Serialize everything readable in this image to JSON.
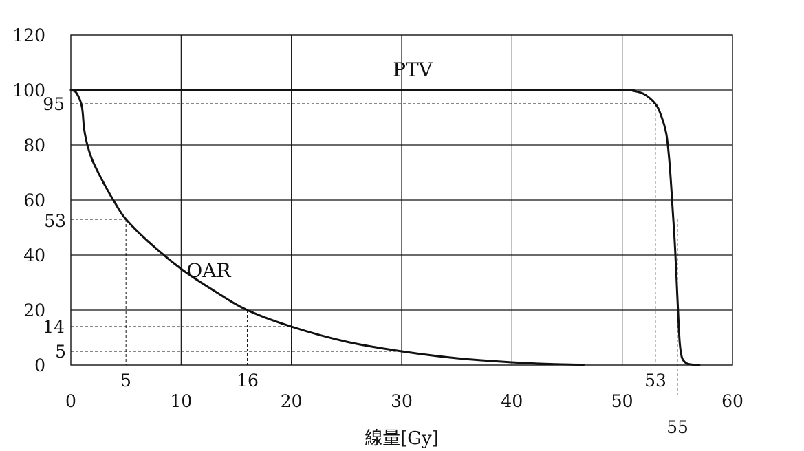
{
  "chart_data": {
    "type": "line",
    "title": "",
    "xlabel": "線量[Gy]",
    "ylabel": "",
    "xlim": [
      0,
      60
    ],
    "ylim": [
      0,
      120
    ],
    "grid": true,
    "legend": "none",
    "x_ticks": [
      "0",
      "10",
      "20",
      "30",
      "40",
      "50",
      "60"
    ],
    "y_ticks": [
      "0",
      "20",
      "40",
      "60",
      "80",
      "100",
      "120"
    ],
    "series": [
      {
        "name": "PTV",
        "x": [
          0,
          10,
          20,
          30,
          40,
          50,
          51,
          52,
          53,
          53.5,
          54,
          54.3,
          54.6,
          54.8,
          55,
          55.2,
          55.4,
          55.7,
          56,
          56.5,
          57
        ],
        "y": [
          100,
          100,
          100,
          100,
          100,
          100,
          99.7,
          98.5,
          95,
          91,
          84,
          73,
          55,
          42,
          25,
          9,
          3,
          1,
          0.4,
          0.1,
          0
        ]
      },
      {
        "name": "OAR",
        "x": [
          0,
          0.5,
          1,
          1.2,
          1.5,
          2,
          3,
          4,
          5,
          7,
          10,
          13,
          16,
          20,
          25,
          30,
          35,
          40,
          44,
          46.5
        ],
        "y": [
          100,
          99,
          94,
          86,
          80,
          74,
          66,
          59,
          53,
          45,
          35,
          27,
          20,
          14,
          8.5,
          5,
          2.5,
          1,
          0.3,
          0.1
        ]
      }
    ],
    "reference_lines": [
      {
        "label": "95",
        "x": 53,
        "y": 95
      },
      {
        "label": "53",
        "x": 5,
        "y": 53
      },
      {
        "label": "14",
        "x": 20,
        "y": 14
      },
      {
        "label": "5",
        "x": 30,
        "y": 5
      }
    ],
    "x_markers": [
      {
        "label": "5",
        "x": 5,
        "y": 53
      },
      {
        "label": "16",
        "x": 16,
        "y": 20
      },
      {
        "label": "20",
        "x": 20,
        "y": 14
      },
      {
        "label": "53",
        "x": 53,
        "y": 95
      },
      {
        "label": "55",
        "x": 55,
        "y": 53
      }
    ],
    "annotations": [
      {
        "text": "PTV",
        "x": 31,
        "y": 105
      },
      {
        "text": "OAR",
        "x": 12.5,
        "y": 32
      }
    ]
  }
}
